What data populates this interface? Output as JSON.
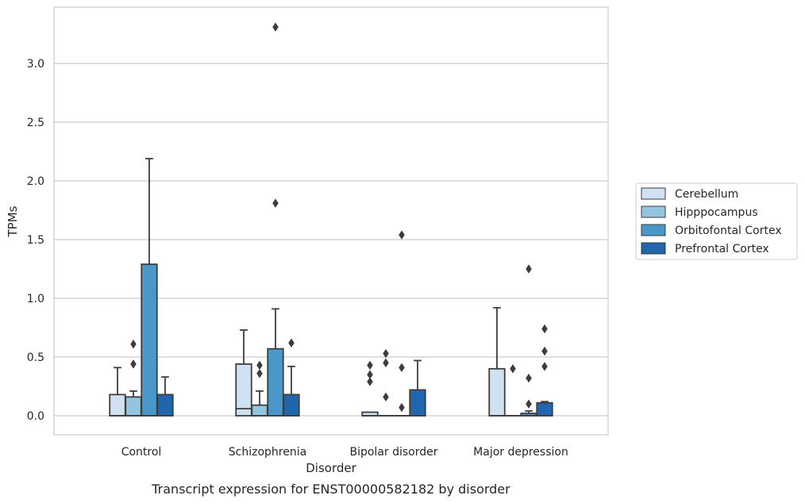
{
  "caption": "Transcript expression for ENST00000582182 by disorder",
  "chart_data": {
    "type": "box",
    "title": "",
    "xlabel": "Disorder",
    "ylabel": "TPMs",
    "ylim": [
      -0.16,
      3.5
    ],
    "yticks": [
      0.0,
      0.5,
      1.0,
      1.5,
      2.0,
      2.5,
      3.0
    ],
    "ytick_labels": [
      "0.0",
      "0.5",
      "1.0",
      "1.5",
      "2.0",
      "2.5",
      "3.0"
    ],
    "grid": "horizontal",
    "legend_position": "right",
    "categories": [
      "Control",
      "Schizophrenia",
      "Bipolar disorder",
      "Major depression"
    ],
    "series": [
      {
        "name": "Cerebellum",
        "color": "#d0e1f2",
        "boxes": [
          {
            "q1": 0.0,
            "median": 0.0,
            "q3": 0.18,
            "whisker_low": 0.0,
            "whisker_high": 0.41,
            "outliers": []
          },
          {
            "q1": 0.0,
            "median": 0.06,
            "q3": 0.44,
            "whisker_low": 0.0,
            "whisker_high": 0.73,
            "outliers": []
          },
          {
            "q1": 0.0,
            "median": 0.0,
            "q3": 0.03,
            "whisker_low": 0.0,
            "whisker_high": 0.03,
            "outliers": [
              0.43,
              0.35,
              0.29
            ]
          },
          {
            "q1": 0.0,
            "median": 0.0,
            "q3": 0.4,
            "whisker_low": 0.0,
            "whisker_high": 0.92,
            "outliers": []
          }
        ]
      },
      {
        "name": "Hipppocampus",
        "color": "#94c4df",
        "boxes": [
          {
            "q1": 0.0,
            "median": 0.0,
            "q3": 0.16,
            "whisker_low": 0.0,
            "whisker_high": 0.21,
            "outliers": [
              0.61,
              0.44
            ]
          },
          {
            "q1": 0.0,
            "median": 0.0,
            "q3": 0.09,
            "whisker_low": 0.0,
            "whisker_high": 0.21,
            "outliers": [
              0.43,
              0.36
            ]
          },
          {
            "q1": 0.0,
            "median": 0.0,
            "q3": 0.0,
            "whisker_low": 0.0,
            "whisker_high": 0.0,
            "outliers": [
              0.53,
              0.45,
              0.16
            ]
          },
          {
            "q1": 0.0,
            "median": 0.0,
            "q3": 0.0,
            "whisker_low": 0.0,
            "whisker_high": 0.0,
            "outliers": [
              0.4
            ]
          }
        ]
      },
      {
        "name": "Orbitofontal Cortex",
        "color": "#4a98c9",
        "boxes": [
          {
            "q1": 0.0,
            "median": 0.0,
            "q3": 1.29,
            "whisker_low": 0.0,
            "whisker_high": 2.19,
            "outliers": []
          },
          {
            "q1": 0.0,
            "median": 0.0,
            "q3": 0.57,
            "whisker_low": 0.0,
            "whisker_high": 0.91,
            "outliers": [
              3.31,
              1.81
            ]
          },
          {
            "q1": 0.0,
            "median": 0.0,
            "q3": 0.0,
            "whisker_low": 0.0,
            "whisker_high": 0.0,
            "outliers": [
              1.54,
              0.41,
              0.07
            ]
          },
          {
            "q1": 0.0,
            "median": 0.0,
            "q3": 0.02,
            "whisker_low": 0.0,
            "whisker_high": 0.04,
            "outliers": [
              1.25,
              0.32,
              0.1
            ]
          }
        ]
      },
      {
        "name": "Prefrontal Cortex",
        "color": "#2166ac",
        "boxes": [
          {
            "q1": 0.0,
            "median": 0.0,
            "q3": 0.18,
            "whisker_low": 0.0,
            "whisker_high": 0.33,
            "outliers": []
          },
          {
            "q1": 0.0,
            "median": 0.0,
            "q3": 0.18,
            "whisker_low": 0.0,
            "whisker_high": 0.42,
            "outliers": [
              0.62
            ]
          },
          {
            "q1": 0.0,
            "median": 0.0,
            "q3": 0.22,
            "whisker_low": 0.0,
            "whisker_high": 0.47,
            "outliers": []
          },
          {
            "q1": 0.0,
            "median": 0.0,
            "q3": 0.11,
            "whisker_low": 0.0,
            "whisker_high": 0.12,
            "outliers": [
              0.74,
              0.55,
              0.42
            ]
          }
        ]
      }
    ]
  }
}
